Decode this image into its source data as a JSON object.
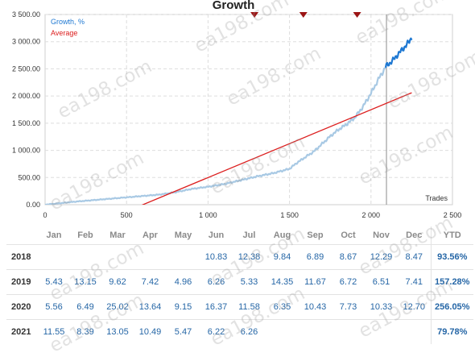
{
  "chart_data": {
    "type": "line",
    "title": "Growth",
    "xlabel": "Trades",
    "ylabel": "",
    "xlim": [
      0,
      2500
    ],
    "ylim": [
      0,
      3500
    ],
    "x_ticks": [
      0,
      500,
      1000,
      1500,
      2000,
      2500
    ],
    "x_tick_labels": [
      "0",
      "500",
      "1 000",
      "1 500",
      "2 000",
      "2 500"
    ],
    "y_ticks": [
      0,
      500,
      1000,
      1500,
      2000,
      2500,
      3000,
      3500
    ],
    "y_tick_labels": [
      "0.00",
      "500.00",
      "1 000.00",
      "1 500.00",
      "2 000.00",
      "2 500.00",
      "3 000.00",
      "3 500.00"
    ],
    "grid": true,
    "legend_position": "top-left",
    "vertical_marker_x": 2095,
    "event_markers_x": [
      1285,
      1585,
      1915
    ],
    "series": [
      {
        "name": "Growth, %",
        "color": "#a8c9e4",
        "highlight_color": "#1e78d2",
        "highlight_from_x": 2095,
        "x": [
          0,
          100,
          200,
          300,
          400,
          500,
          600,
          700,
          800,
          900,
          1000,
          1100,
          1200,
          1300,
          1400,
          1500,
          1550,
          1600,
          1650,
          1700,
          1750,
          1800,
          1850,
          1900,
          1950,
          2000,
          2050,
          2095,
          2130,
          2160,
          2200,
          2230,
          2250
        ],
        "values": [
          0,
          30,
          60,
          85,
          110,
          135,
          160,
          185,
          230,
          290,
          330,
          380,
          450,
          520,
          580,
          660,
          780,
          880,
          980,
          1120,
          1260,
          1380,
          1480,
          1600,
          1800,
          2050,
          2330,
          2560,
          2640,
          2750,
          2880,
          2980,
          3080
        ]
      },
      {
        "name": "Average",
        "color": "#dc1e1e",
        "x": [
          400,
          2250
        ],
        "values": [
          -250,
          2060
        ]
      }
    ]
  },
  "year_table": {
    "headers": [
      "",
      "Jan",
      "Feb",
      "Mar",
      "Apr",
      "May",
      "Jun",
      "Jul",
      "Aug",
      "Sep",
      "Oct",
      "Nov",
      "Dec",
      "YTD"
    ],
    "rows": [
      {
        "year": "2018",
        "months": [
          "",
          "",
          "",
          "",
          "",
          "10.83",
          "12.38",
          "9.84",
          "6.89",
          "8.67",
          "12.29",
          "8.47"
        ],
        "ytd": "93.56%"
      },
      {
        "year": "2019",
        "months": [
          "5.43",
          "13.15",
          "9.62",
          "7.42",
          "4.96",
          "6.26",
          "5.33",
          "14.35",
          "11.67",
          "6.72",
          "6.51",
          "7.41"
        ],
        "ytd": "157.28%"
      },
      {
        "year": "2020",
        "months": [
          "5.56",
          "6.49",
          "25.02",
          "13.64",
          "9.15",
          "16.37",
          "11.58",
          "6.35",
          "10.43",
          "7.73",
          "10.33",
          "12.70"
        ],
        "ytd": "256.05%"
      },
      {
        "year": "2021",
        "months": [
          "11.55",
          "8.39",
          "13.05",
          "10.49",
          "5.47",
          "6.22",
          "6.26",
          "",
          "",
          "",
          "",
          ""
        ],
        "ytd": "79.78%"
      }
    ]
  },
  "watermark": "ea198.com",
  "colors": {
    "growth_light": "#a8c9e4",
    "growth_dark": "#1e78d2",
    "average": "#dc1e1e",
    "marker": "#9b1414",
    "grid": "#dddddd",
    "value_text": "#2566a6"
  }
}
